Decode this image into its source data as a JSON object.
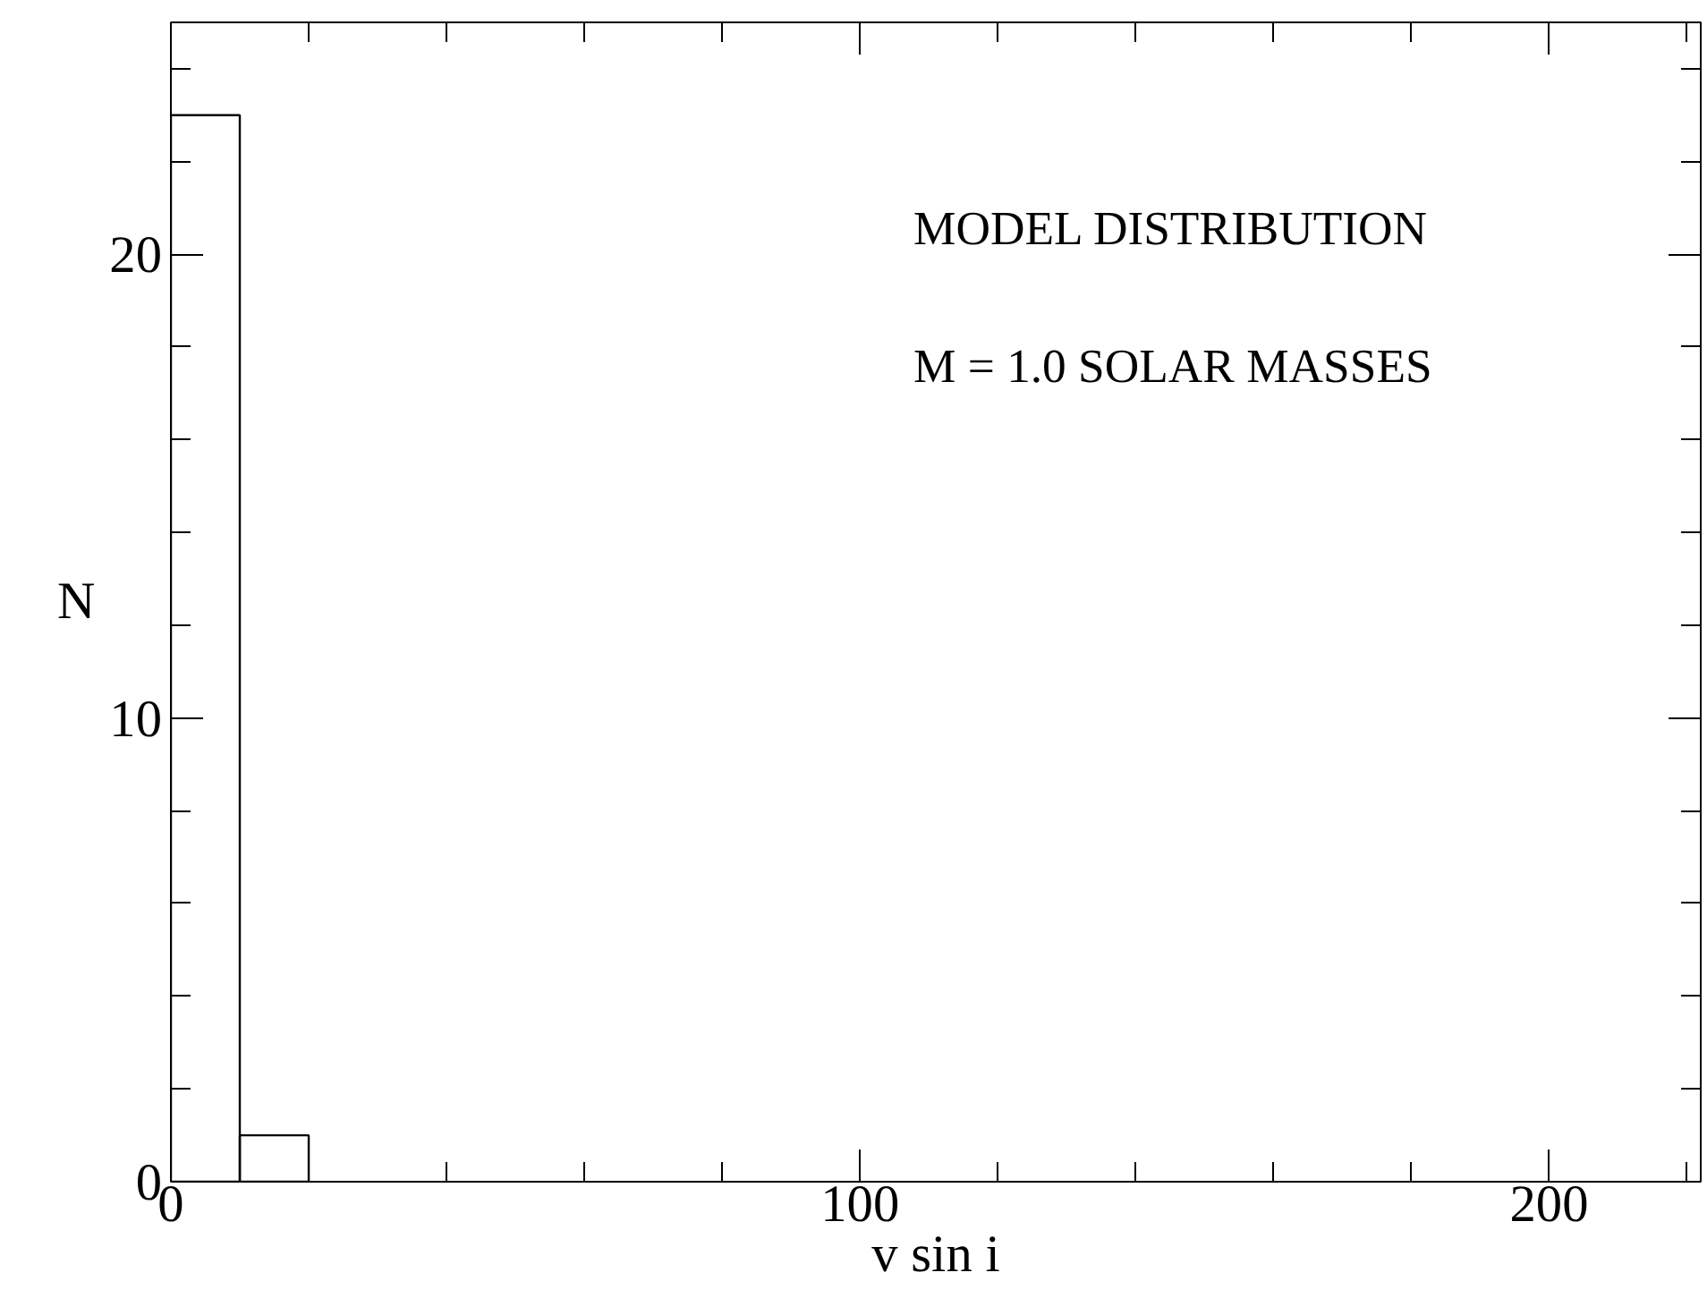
{
  "chart_data": {
    "type": "histogram",
    "xlabel": "v sin i",
    "ylabel": "N",
    "bins": [
      0,
      10,
      20
    ],
    "values": [
      23,
      1
    ],
    "color": "#000000",
    "xlim": [
      0,
      222
    ],
    "ylim": [
      0,
      25
    ],
    "xticks": [
      0,
      {
        "value": 20,
        "label": null
      },
      {
        "value": 40,
        "label": null
      },
      {
        "value": 60,
        "label": null
      },
      {
        "value": 80,
        "label": null
      },
      100,
      {
        "value": 120,
        "label": null
      },
      {
        "value": 140,
        "label": null
      },
      {
        "value": 160,
        "label": null
      },
      {
        "value": 180,
        "label": null
      },
      200,
      {
        "value": 220,
        "label": null
      }
    ],
    "yticks": [
      0,
      {
        "value": 2,
        "label": null
      },
      {
        "value": 4,
        "label": null
      },
      {
        "value": 6,
        "label": null
      },
      {
        "value": 8,
        "label": null
      },
      10,
      {
        "value": 12,
        "label": null
      },
      {
        "value": 14,
        "label": null
      },
      {
        "value": 16,
        "label": null
      },
      {
        "value": 18,
        "label": null
      },
      20,
      {
        "value": 22,
        "label": null
      },
      {
        "value": 24,
        "label": null
      }
    ],
    "annotations": [
      "MODEL DISTRIBUTION",
      "M = 1.0 SOLAR MASSES"
    ]
  }
}
